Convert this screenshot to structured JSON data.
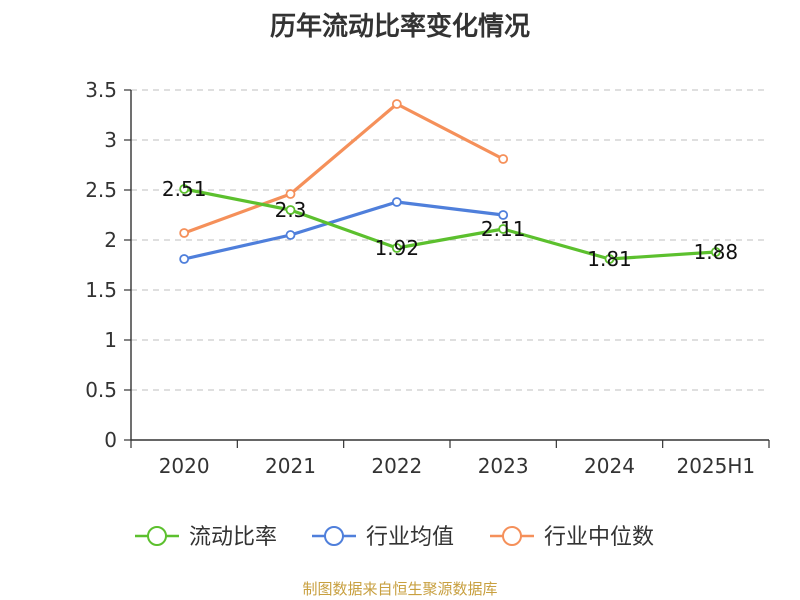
{
  "chart_data": {
    "type": "line",
    "title": "历年流动比率变化情况",
    "categories": [
      "2020",
      "2021",
      "2022",
      "2023",
      "2024",
      "2025H1"
    ],
    "ylim": [
      0,
      3.5
    ],
    "yticks": [
      "0",
      "0.5",
      "1",
      "1.5",
      "2",
      "2.5",
      "3",
      "3.5"
    ],
    "grid": true,
    "legend_position": "bottom",
    "series": [
      {
        "name": "流动比率",
        "color": "#5cc02e",
        "values": [
          2.51,
          2.3,
          1.92,
          2.11,
          1.81,
          1.88
        ],
        "labels": [
          "2.51",
          "2.3",
          "1.92",
          "2.11",
          "1.81",
          "1.88"
        ]
      },
      {
        "name": "行业均值",
        "color": "#4f7fdb",
        "values": [
          1.81,
          2.05,
          2.38,
          2.25,
          null,
          null
        ]
      },
      {
        "name": "行业中位数",
        "color": "#f5905a",
        "values": [
          2.07,
          2.46,
          3.36,
          2.81,
          null,
          null
        ]
      }
    ]
  },
  "source_note": "制图数据来自恒生聚源数据库"
}
